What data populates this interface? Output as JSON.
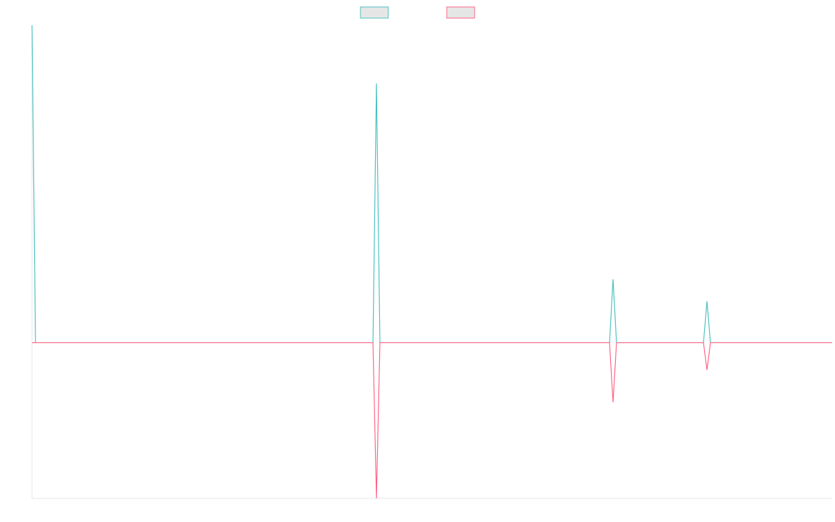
{
  "chart_data": {
    "type": "line",
    "title": "",
    "xlabel": "",
    "ylabel": "",
    "x": [
      0,
      1,
      98,
      99,
      100,
      166,
      167,
      168,
      193,
      194,
      195,
      230
    ],
    "xlim": [
      0,
      230
    ],
    "ylim": [
      -1.2,
      2.45
    ],
    "grid": false,
    "legend": "top-center",
    "series": [
      {
        "name": "",
        "color": "#4bc0c0",
        "values": [
          2.45,
          0,
          0,
          2.0,
          0,
          0,
          0.49,
          0,
          0,
          0.32,
          0,
          0
        ]
      },
      {
        "name": "",
        "color": "#ff6384",
        "values": [
          0,
          0,
          0,
          -1.2,
          0,
          0,
          -0.46,
          0,
          0,
          -0.21,
          0,
          0
        ]
      }
    ]
  }
}
